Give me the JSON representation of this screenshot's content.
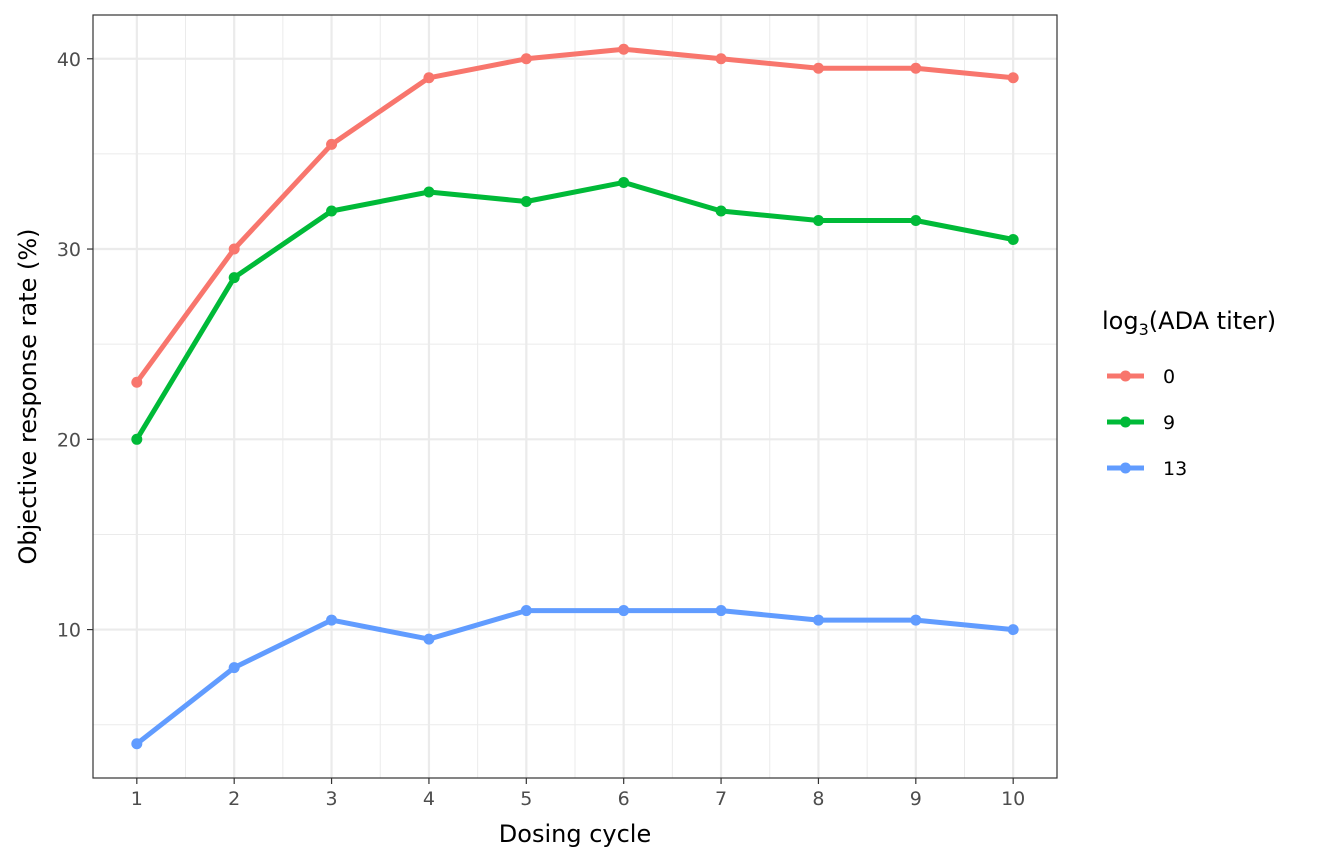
{
  "chart_data": {
    "type": "line",
    "xlabel": "Dosing cycle",
    "ylabel": "Objective response rate (%)",
    "x": [
      1,
      2,
      3,
      4,
      5,
      6,
      7,
      8,
      9,
      10
    ],
    "x_ticks": [
      "1",
      "2",
      "3",
      "4",
      "5",
      "6",
      "7",
      "8",
      "9",
      "10"
    ],
    "y_ticks": [
      "10",
      "20",
      "30",
      "40"
    ],
    "xlim": [
      0.55,
      10.45
    ],
    "ylim": [
      2.2,
      42.3
    ],
    "grid": true,
    "legend": {
      "title_base": "log",
      "title_sub": "3",
      "title_rest": "(ADA titer)",
      "position": "right"
    },
    "series": [
      {
        "name": "0",
        "color": "#F8766D",
        "values": [
          23,
          30,
          35.5,
          39,
          40,
          40.5,
          40,
          39.5,
          39.5,
          39
        ]
      },
      {
        "name": "9",
        "color": "#00BA38",
        "values": [
          20,
          28.5,
          32,
          33,
          32.5,
          33.5,
          32,
          31.5,
          31.5,
          30.5
        ]
      },
      {
        "name": "13",
        "color": "#619CFF",
        "values": [
          4,
          8,
          10.5,
          9.5,
          11,
          11,
          11,
          10.5,
          10.5,
          10
        ]
      }
    ]
  }
}
